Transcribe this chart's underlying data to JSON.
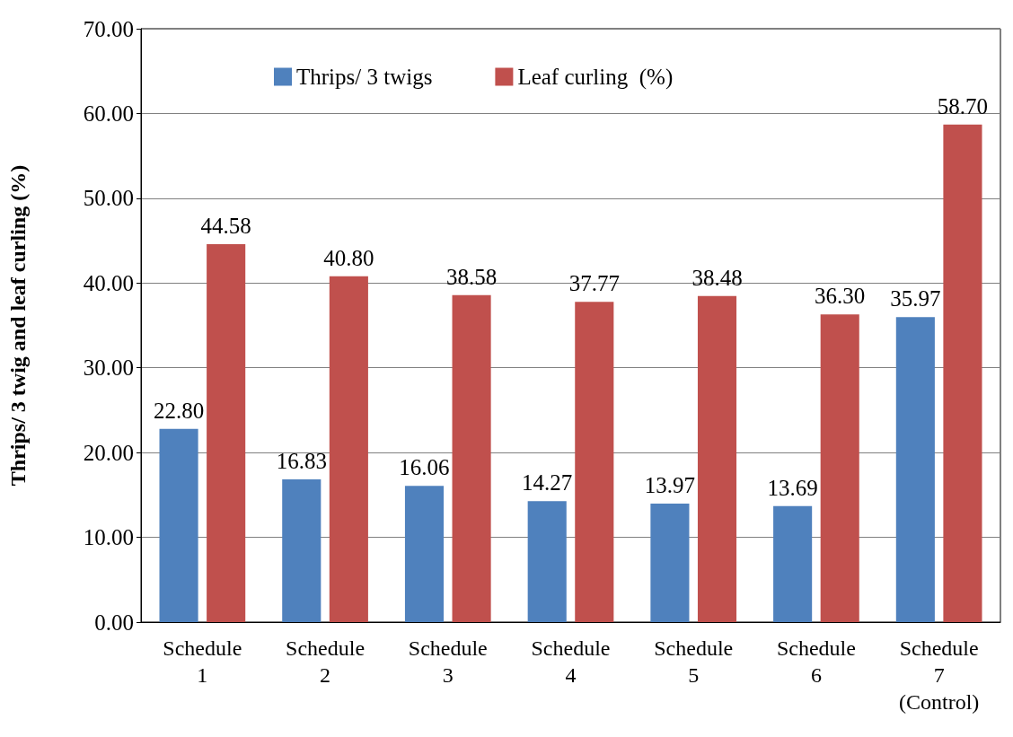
{
  "chart_data": {
    "type": "bar",
    "ylabel": "Thrips/ 3 twig and leaf curling (%)",
    "categories": [
      "Schedule\n1",
      "Schedule\n2",
      "Schedule\n3",
      "Schedule\n4",
      "Schedule\n5",
      "Schedule\n6",
      "Schedule\n7\n(Control)"
    ],
    "series": [
      {
        "name": "Thrips/ 3 twigs",
        "color": "#4f81bd",
        "values": [
          22.8,
          16.83,
          16.06,
          14.27,
          13.97,
          13.69,
          35.97
        ],
        "value_labels": [
          "22.80",
          "16.83",
          "16.06",
          "14.27",
          "13.97",
          "13.69",
          "35.97"
        ]
      },
      {
        "name": "Leaf curling  (%)",
        "color": "#c0504d",
        "values": [
          44.58,
          40.8,
          38.58,
          37.77,
          38.48,
          36.3,
          58.7
        ],
        "value_labels": [
          "44.58",
          "40.80",
          "38.58",
          "37.77",
          "38.48",
          "36.30",
          "58.70"
        ]
      }
    ],
    "ylim": [
      0,
      70
    ],
    "yticks": [
      {
        "value": 0,
        "label": "0.00"
      },
      {
        "value": 10,
        "label": "10.00"
      },
      {
        "value": 20,
        "label": "20.00"
      },
      {
        "value": 30,
        "label": "30.00"
      },
      {
        "value": 40,
        "label": "40.00"
      },
      {
        "value": 50,
        "label": "50.00"
      },
      {
        "value": 60,
        "label": "60.00"
      },
      {
        "value": 70,
        "label": "70.00"
      }
    ],
    "grid": "y",
    "legend": "top"
  }
}
